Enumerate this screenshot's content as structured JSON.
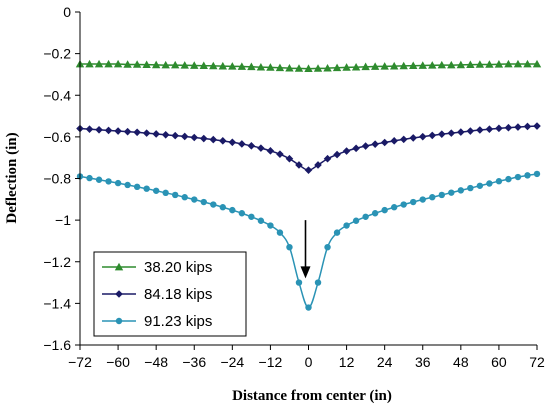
{
  "chart_data": {
    "type": "line",
    "xlabel": "Distance from center  (in)",
    "ylabel": "Deflection  (in)",
    "xlim": [
      -72,
      72
    ],
    "ylim": [
      -1.6,
      0
    ],
    "xticks": [
      "−72",
      "−60",
      "−48",
      "−36",
      "−24",
      "−12",
      "0",
      "12",
      "24",
      "36",
      "48",
      "60",
      "72"
    ],
    "yticks": [
      "0",
      "−0.2",
      "−0.4",
      "−0.6",
      "−0.8",
      "−1",
      "−1.2",
      "−1.4",
      "−1.6"
    ],
    "grid": false,
    "legend_position": "bottom-left",
    "annotation": {
      "type": "arrow",
      "x": 0,
      "y_from": -1.0,
      "y_to": -1.28
    },
    "x": [
      -72,
      -69,
      -66,
      -63,
      -60,
      -57,
      -54,
      -51,
      -48,
      -45,
      -42,
      -39,
      -36,
      -33,
      -30,
      -27,
      -24,
      -21,
      -18,
      -15,
      -12,
      -9,
      -6,
      -3,
      0,
      3,
      6,
      9,
      12,
      15,
      18,
      21,
      24,
      27,
      30,
      33,
      36,
      39,
      42,
      45,
      48,
      51,
      54,
      57,
      60,
      63,
      66,
      69,
      72
    ],
    "series": [
      {
        "name": "38.20 kips",
        "color": "#2e8b2e",
        "marker": "triangle",
        "values": [
          -0.25,
          -0.25,
          -0.25,
          -0.25,
          -0.25,
          -0.252,
          -0.252,
          -0.253,
          -0.254,
          -0.255,
          -0.255,
          -0.256,
          -0.257,
          -0.258,
          -0.259,
          -0.26,
          -0.261,
          -0.262,
          -0.263,
          -0.265,
          -0.266,
          -0.268,
          -0.27,
          -0.271,
          -0.272,
          -0.271,
          -0.27,
          -0.268,
          -0.266,
          -0.265,
          -0.263,
          -0.262,
          -0.261,
          -0.26,
          -0.259,
          -0.258,
          -0.257,
          -0.256,
          -0.255,
          -0.255,
          -0.254,
          -0.253,
          -0.252,
          -0.252,
          -0.251,
          -0.25,
          -0.25,
          -0.25,
          -0.25
        ]
      },
      {
        "name": "84.18 kips",
        "color": "#1a1a66",
        "marker": "diamond",
        "values": [
          -0.56,
          -0.563,
          -0.566,
          -0.569,
          -0.572,
          -0.575,
          -0.578,
          -0.582,
          -0.586,
          -0.59,
          -0.594,
          -0.598,
          -0.603,
          -0.608,
          -0.613,
          -0.619,
          -0.626,
          -0.634,
          -0.643,
          -0.654,
          -0.667,
          -0.683,
          -0.705,
          -0.735,
          -0.76,
          -0.735,
          -0.705,
          -0.685,
          -0.668,
          -0.655,
          -0.644,
          -0.635,
          -0.627,
          -0.619,
          -0.612,
          -0.605,
          -0.599,
          -0.593,
          -0.587,
          -0.582,
          -0.577,
          -0.572,
          -0.567,
          -0.563,
          -0.559,
          -0.556,
          -0.553,
          -0.55,
          -0.548
        ]
      },
      {
        "name": "91.23 kips",
        "color": "#2a93b5",
        "marker": "circle",
        "values": [
          -0.79,
          -0.798,
          -0.806,
          -0.814,
          -0.822,
          -0.831,
          -0.84,
          -0.849,
          -0.859,
          -0.869,
          -0.879,
          -0.89,
          -0.901,
          -0.913,
          -0.925,
          -0.938,
          -0.952,
          -0.967,
          -0.984,
          -1.003,
          -1.026,
          -1.06,
          -1.13,
          -1.3,
          -1.42,
          -1.3,
          -1.13,
          -1.06,
          -1.026,
          -1.003,
          -0.984,
          -0.967,
          -0.952,
          -0.938,
          -0.925,
          -0.913,
          -0.901,
          -0.89,
          -0.879,
          -0.868,
          -0.857,
          -0.846,
          -0.835,
          -0.824,
          -0.813,
          -0.803,
          -0.793,
          -0.785,
          -0.778
        ]
      }
    ]
  }
}
